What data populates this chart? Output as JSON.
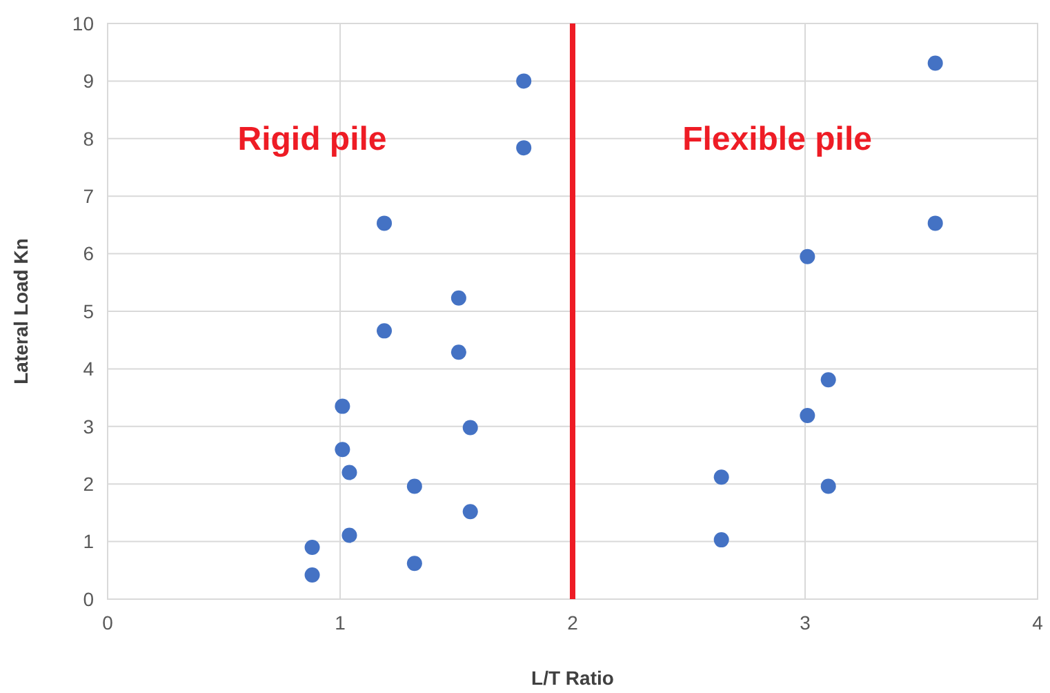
{
  "chart_data": {
    "type": "scatter",
    "xlabel": "L/T Ratio",
    "ylabel": "Lateral Load Kn",
    "x": [
      1.79,
      1.79,
      1.19,
      1.51,
      1.19,
      1.51,
      1.01,
      1.56,
      1.01,
      1.04,
      1.32,
      1.56,
      1.04,
      0.88,
      1.32,
      0.88,
      3.56,
      3.56,
      3.01,
      3.1,
      3.01,
      2.64,
      3.1,
      2.64
    ],
    "series": [
      {
        "color": "#4472c4",
        "values": [
          9.0,
          7.84,
          6.53,
          5.23,
          4.66,
          4.29,
          3.35,
          2.98,
          2.6,
          2.2,
          1.96,
          1.52,
          1.11,
          0.9,
          0.62,
          0.42,
          9.31,
          6.53,
          5.95,
          3.81,
          3.19,
          2.12,
          1.96,
          1.03
        ]
      }
    ],
    "xlim": [
      0,
      4
    ],
    "xticks": [
      0,
      1,
      2,
      3,
      4
    ],
    "ylim": [
      0,
      10
    ],
    "yticks": [
      0,
      1,
      2,
      3,
      4,
      5,
      6,
      7,
      8,
      9,
      10
    ],
    "grid": true,
    "marker": "circle",
    "ref_lines": [
      {
        "axis": "x",
        "value": 2,
        "color": "#ee1c25"
      }
    ],
    "annotations": [
      "Rigid pile",
      "Flexible pile"
    ]
  }
}
